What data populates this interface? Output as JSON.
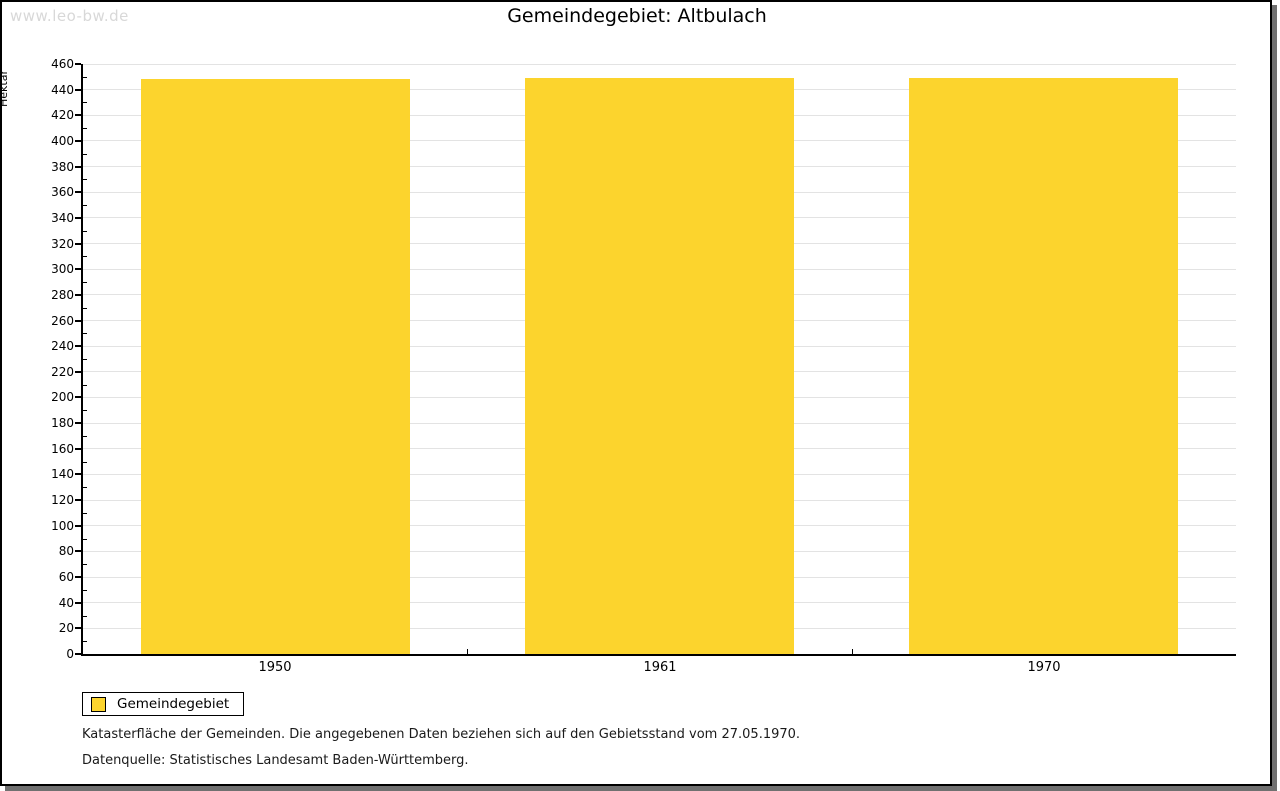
{
  "watermark": "www.leo-bw.de",
  "header": {
    "title": "Gemeindegebiet: Altbulach"
  },
  "chart_data": {
    "type": "bar",
    "title": "Gemeindegebiet: Altbulach",
    "categories": [
      "1950",
      "1961",
      "1970"
    ],
    "series": [
      {
        "name": "Gemeindegebiet",
        "values": [
          448,
          449,
          449
        ]
      }
    ],
    "xlabel": "",
    "ylabel": "Hektar",
    "ylim": [
      0,
      460
    ],
    "ytick_step": 20,
    "yminor_step": 10,
    "grid": "horizontal-major",
    "legend_position": "bottom-left",
    "bar_color": "#fcd42d"
  },
  "legend": {
    "items": [
      {
        "label": "Gemeindegebiet",
        "color": "#fcd42d"
      }
    ]
  },
  "caption": {
    "line1": "Katasterfläche der Gemeinden. Die angegebenen Daten beziehen sich auf den Gebietsstand vom 27.05.1970.",
    "line2": "Datenquelle: Statistisches Landesamt Baden-Württemberg."
  },
  "colors": {
    "bar": "#fcd42d",
    "gridline": "#e3e3e3",
    "axis": "#000000",
    "watermark_text": "#d8d8d8",
    "frame_shadow": "#707070",
    "background": "#ffffff"
  }
}
